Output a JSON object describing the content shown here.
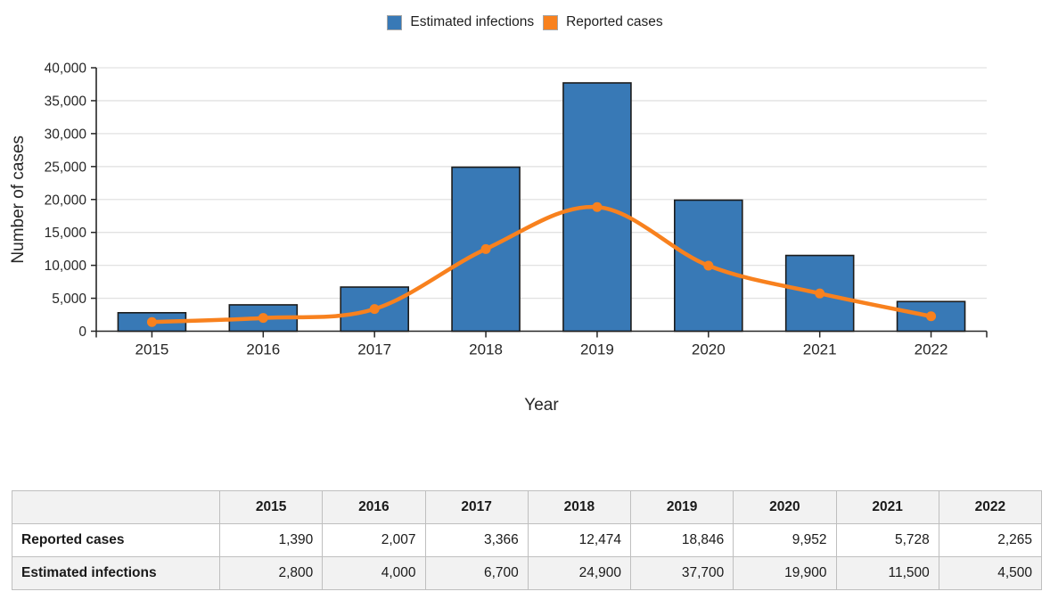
{
  "legend": {
    "items": [
      {
        "label": "Estimated infections",
        "color": "#3879b6"
      },
      {
        "label": "Reported cases",
        "color": "#f8811e"
      }
    ]
  },
  "chart_data": {
    "type": "combo",
    "categories": [
      "2015",
      "2016",
      "2017",
      "2018",
      "2019",
      "2020",
      "2021",
      "2022"
    ],
    "series": [
      {
        "name": "Estimated infections",
        "type": "bar",
        "color": "#3879b6",
        "border_color": "#1c1c1c",
        "values": [
          2800,
          4000,
          6700,
          24900,
          37700,
          19900,
          11500,
          4500
        ]
      },
      {
        "name": "Reported cases",
        "type": "line",
        "color": "#f8811e",
        "values": [
          1390,
          2007,
          3366,
          12474,
          18846,
          9952,
          5728,
          2265
        ]
      }
    ],
    "title": "",
    "xlabel": "Year",
    "ylabel": "Number of cases",
    "ylim": [
      0,
      40000
    ],
    "ytick_step": 5000,
    "ytick_labels": [
      "0",
      "5,000",
      "10,000",
      "15,000",
      "20,000",
      "25,000",
      "30,000",
      "35,000",
      "40,000"
    ],
    "grid": true,
    "legend_position": "top"
  },
  "table": {
    "columns": [
      "",
      "2015",
      "2016",
      "2017",
      "2018",
      "2019",
      "2020",
      "2021",
      "2022"
    ],
    "rows": [
      {
        "label": "Reported cases",
        "values": [
          "1,390",
          "2,007",
          "3,366",
          "12,474",
          "18,846",
          "9,952",
          "5,728",
          "2,265"
        ]
      },
      {
        "label": "Estimated infections",
        "values": [
          "2,800",
          "4,000",
          "6,700",
          "24,900",
          "37,700",
          "19,900",
          "11,500",
          "4,500"
        ]
      }
    ]
  },
  "colors": {
    "axis": "#262626",
    "gridline": "#e2e2e2",
    "tick_text": "#262626",
    "table_border": "#bfbfbf",
    "table_zebra": "#f2f2f2"
  }
}
